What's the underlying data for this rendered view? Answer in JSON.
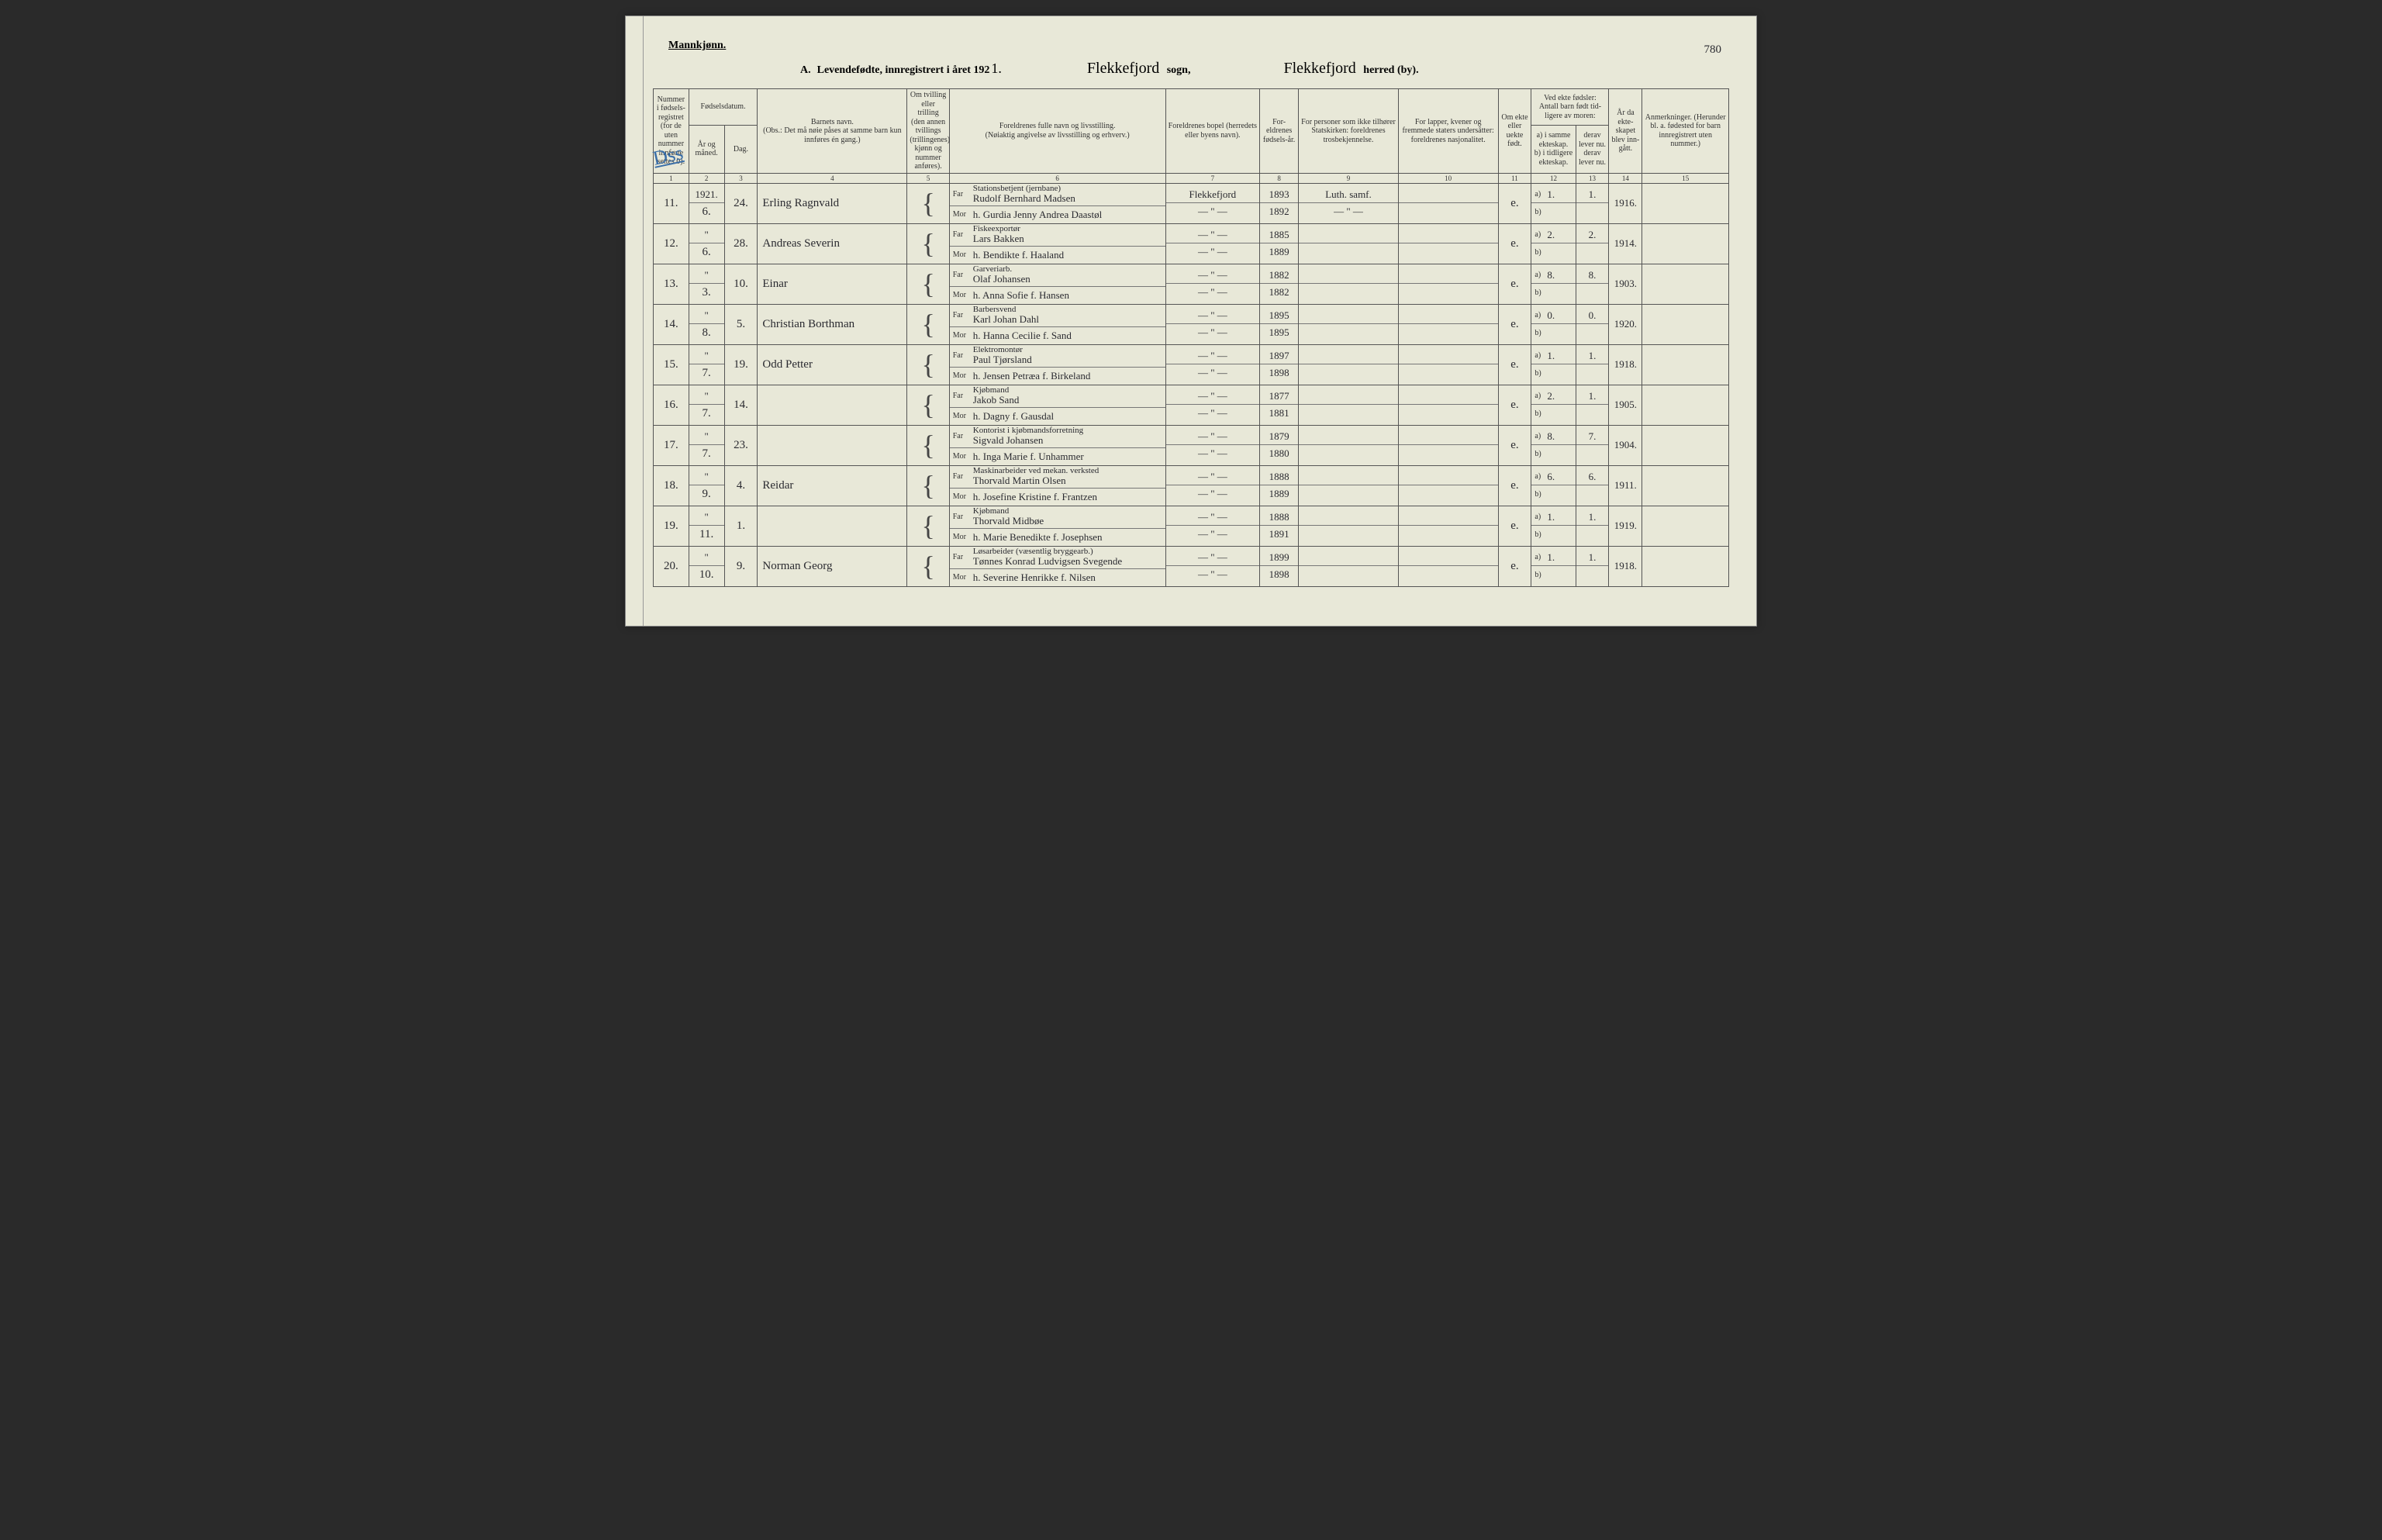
{
  "header": {
    "gender": "Mannkjønn.",
    "title_letter": "A.",
    "title_text": "Levendefødte, innregistrert i året 192",
    "title_year_hand": "1.",
    "sogn_hand": "Flekkefjord",
    "sogn_label": "sogn,",
    "herred_hand": "Flekkefjord",
    "herred_label": "herred (by).",
    "page_number": "780",
    "margin_note": "Dss"
  },
  "columns": {
    "c1": "Nummer i fødsels-registret (for de uten nummer innførte settes 0).",
    "c2_top": "Fødselsdatum.",
    "c2": "År og måned.",
    "c3": "Dag.",
    "c4_top": "Barnets navn.",
    "c4": "(Obs.: Det må nøie påses at samme barn kun innføres én gang.)",
    "c5": "Om tvilling eller trilling (den annen tvillings (trillingenes) kjønn og nummer anføres).",
    "c6_top": "Foreldrenes fulle navn og livsstilling.",
    "c6": "(Nøiaktig angivelse av livsstilling og erhverv.)",
    "c7": "Foreldrenes bopel (herredets eller byens navn).",
    "c8": "For-eldrenes fødsels-år.",
    "c9": "For personer som ikke tilhører Statskirken: foreldrenes trosbekjennelse.",
    "c10": "For lapper, kvener og fremmede staters undersåtter: foreldrenes nasjonalitet.",
    "c11": "Om ekte eller uekte født.",
    "c12_top": "Ved ekte fødsler: Antall barn født tid-ligere av moren:",
    "c12a": "a) i samme ekteskap.",
    "c12b": "b) i tidligere ekteskap.",
    "c13a": "derav lever nu.",
    "c13b": "derav lever nu.",
    "c14": "År da ekte-skapet blev inn-gått.",
    "c15": "Anmerkninger. (Herunder bl. a. fødested for barn innregistrert uten nummer.)",
    "far": "Far",
    "mor": "Mor",
    "a": "a)",
    "b": "b)"
  },
  "colnums": [
    "1",
    "2",
    "3",
    "4",
    "5",
    "6",
    "7",
    "8",
    "9",
    "10",
    "11",
    "12",
    "13",
    "14",
    "15"
  ],
  "rows": [
    {
      "num": "11.",
      "ym_top": "1921.",
      "ym": "6.",
      "day": "24.",
      "child": "Erling Ragnvald",
      "far_occ": "Stationsbetjent (jernbane)",
      "far": "Rudolf Bernhard Madsen",
      "mor": "h. Gurdia Jenny Andrea Daastøl",
      "bopel_far": "Flekkefjord",
      "bopel_mor": "— \" —",
      "year_far": "1893",
      "year_mor": "1892",
      "c9_far": "Luth. samf.",
      "c9_mor": "— \" —",
      "ekte": "e.",
      "a": "1.",
      "a2": "1.",
      "ekt_year": "1916."
    },
    {
      "num": "12.",
      "ym_top": "\"",
      "ym": "6.",
      "day": "28.",
      "child": "Andreas Severin",
      "far_occ": "Fiskeexportør",
      "far": "Lars Bakken",
      "mor": "h. Bendikte f. Haaland",
      "bopel_far": "— \" —",
      "bopel_mor": "— \" —",
      "year_far": "1885",
      "year_mor": "1889",
      "c9_far": "",
      "c9_mor": "",
      "ekte": "e.",
      "a": "2.",
      "a2": "2.",
      "ekt_year": "1914."
    },
    {
      "num": "13.",
      "ym_top": "\"",
      "ym": "3.",
      "day": "10.",
      "child": "Einar",
      "far_occ": "Garveriarb.",
      "far": "Olaf Johansen",
      "mor": "h. Anna Sofie f. Hansen",
      "bopel_far": "— \" —",
      "bopel_mor": "— \" —",
      "year_far": "1882",
      "year_mor": "1882",
      "c9_far": "",
      "c9_mor": "",
      "ekte": "e.",
      "a": "8.",
      "a2": "8.",
      "ekt_year": "1903."
    },
    {
      "num": "14.",
      "ym_top": "\"",
      "ym": "8.",
      "day": "5.",
      "child": "Christian Borthman",
      "far_occ": "Barbersvend",
      "far": "Karl Johan Dahl",
      "mor": "h. Hanna Cecilie f. Sand",
      "bopel_far": "— \" —",
      "bopel_mor": "— \" —",
      "year_far": "1895",
      "year_mor": "1895",
      "c9_far": "",
      "c9_mor": "",
      "ekte": "e.",
      "a": "0.",
      "a2": "0.",
      "ekt_year": "1920."
    },
    {
      "num": "15.",
      "ym_top": "\"",
      "ym": "7.",
      "day": "19.",
      "child": "Odd Petter",
      "far_occ": "Elektromontør",
      "far": "Paul Tjørsland",
      "mor": "h. Jensen Petræa f. Birkeland",
      "bopel_far": "— \" —",
      "bopel_mor": "— \" —",
      "year_far": "1897",
      "year_mor": "1898",
      "c9_far": "",
      "c9_mor": "",
      "ekte": "e.",
      "a": "1.",
      "a2": "1.",
      "ekt_year": "1918."
    },
    {
      "num": "16.",
      "ym_top": "\"",
      "ym": "7.",
      "day": "14.",
      "child": "",
      "far_occ": "Kjøbmand",
      "far": "Jakob Sand",
      "mor": "h. Dagny f. Gausdal",
      "bopel_far": "— \" —",
      "bopel_mor": "— \" —",
      "year_far": "1877",
      "year_mor": "1881",
      "c9_far": "",
      "c9_mor": "",
      "ekte": "e.",
      "a": "2.",
      "a2": "1.",
      "ekt_year": "1905."
    },
    {
      "num": "17.",
      "ym_top": "\"",
      "ym": "7.",
      "day": "23.",
      "child": "",
      "far_occ": "Kontorist i kjøbmandsforretning",
      "far": "Sigvald Johansen",
      "mor": "h. Inga Marie f. Unhammer",
      "bopel_far": "— \" —",
      "bopel_mor": "— \" —",
      "year_far": "1879",
      "year_mor": "1880",
      "c9_far": "",
      "c9_mor": "",
      "ekte": "e.",
      "a": "8.",
      "a2": "7.",
      "ekt_year": "1904."
    },
    {
      "num": "18.",
      "ym_top": "\"",
      "ym": "9.",
      "day": "4.",
      "child": "Reidar",
      "far_occ": "Maskinarbeider ved mekan. verksted",
      "far": "Thorvald Martin Olsen",
      "mor": "h. Josefine Kristine f. Frantzen",
      "bopel_far": "— \" —",
      "bopel_mor": "— \" —",
      "year_far": "1888",
      "year_mor": "1889",
      "c9_far": "",
      "c9_mor": "",
      "ekte": "e.",
      "a": "6.",
      "a2": "6.",
      "ekt_year": "1911."
    },
    {
      "num": "19.",
      "ym_top": "\"",
      "ym": "11.",
      "day": "1.",
      "child": "",
      "far_occ": "Kjøbmand",
      "far": "Thorvald Midbøe",
      "mor": "h. Marie Benedikte f. Josephsen",
      "bopel_far": "— \" —",
      "bopel_mor": "— \" —",
      "year_far": "1888",
      "year_mor": "1891",
      "c9_far": "",
      "c9_mor": "",
      "ekte": "e.",
      "a": "1.",
      "a2": "1.",
      "ekt_year": "1919."
    },
    {
      "num": "20.",
      "ym_top": "\"",
      "ym": "10.",
      "day": "9.",
      "child": "Norman Georg",
      "far_occ": "Løsarbeider (væsentlig bryggearb.)",
      "far": "Tønnes Konrad Ludvigsen Svegende",
      "mor": "h. Severine Henrikke f. Nilsen",
      "bopel_far": "— \" —",
      "bopel_mor": "— \" —",
      "year_far": "1899",
      "year_mor": "1898",
      "c9_far": "",
      "c9_mor": "",
      "ekte": "e.",
      "a": "1.",
      "a2": "1.",
      "ekt_year": "1918."
    }
  ]
}
